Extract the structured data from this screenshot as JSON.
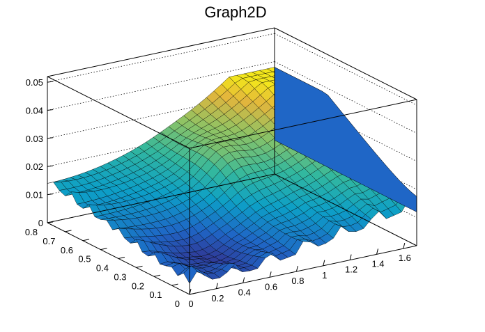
{
  "chart_data": {
    "type": "surface",
    "title": "Graph2D",
    "xlabel": "",
    "ylabel": "",
    "zlabel": "",
    "xlim": [
      0,
      1.7
    ],
    "ylim": [
      0,
      0.8
    ],
    "zlim": [
      0,
      0.052
    ],
    "x_ticks": [
      "0",
      "0.2",
      "0.4",
      "0.6",
      "0.8",
      "1",
      "1.2",
      "1.4",
      "1.6"
    ],
    "y_ticks": [
      "0",
      "0.1",
      "0.2",
      "0.3",
      "0.4",
      "0.5",
      "0.6",
      "0.7",
      "0.8"
    ],
    "z_ticks": [
      "0",
      "0.01",
      "0.02",
      "0.03",
      "0.04",
      "0.05"
    ],
    "grid": true,
    "colormap": [
      "#352a87",
      "#1f66c6",
      "#0d9fc7",
      "#33b89e",
      "#8fc364",
      "#e3b53c",
      "#f9fb0e"
    ],
    "surface_approx": {
      "note_x_range": [
        0,
        1.7
      ],
      "note_y_range": [
        0,
        0.8
      ],
      "corner_values": {
        "x0_y0": 0.004,
        "x0_y08": 0.013,
        "x17_y0": 0.012,
        "x17_y08": 0.037
      }
    }
  }
}
